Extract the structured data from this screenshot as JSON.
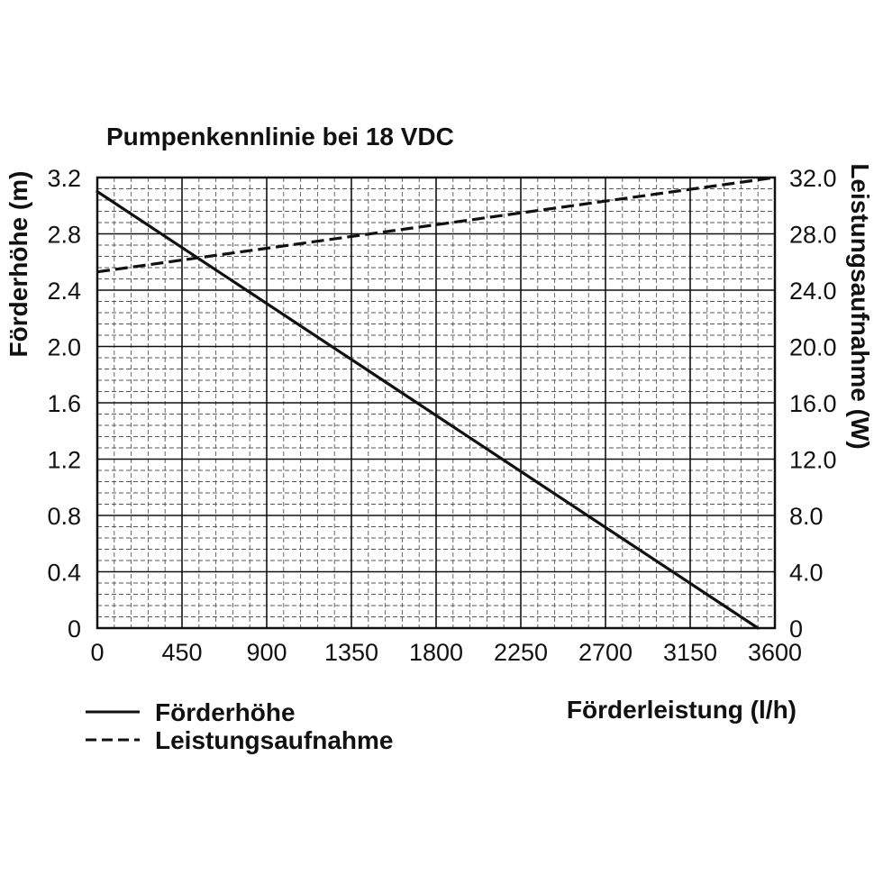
{
  "chart_data": {
    "type": "line",
    "title": "Pumpenkennlinie bei 18 VDC",
    "xlabel": "Förderleistung (l/h)",
    "ylabel_left": "Förderhöhe (m)",
    "ylabel_right": "Leistungsaufnahme (W)",
    "xlim": [
      0,
      3600
    ],
    "ylim_left": [
      0,
      3.2
    ],
    "ylim_right": [
      0,
      32.0
    ],
    "x_ticks": [
      "0",
      "450",
      "900",
      "1350",
      "1800",
      "2250",
      "2700",
      "3150",
      "3600"
    ],
    "y_left_ticks": [
      "0",
      "0.4",
      "0.8",
      "1.2",
      "1.6",
      "2.0",
      "2.4",
      "2.8",
      "3.2"
    ],
    "y_right_ticks": [
      "0",
      "4.0",
      "8.0",
      "12.0",
      "16.0",
      "20.0",
      "24.0",
      "28.0",
      "32.0"
    ],
    "grid": true,
    "legend_position": "bottom-left",
    "series": [
      {
        "name": "Förderhöhe",
        "axis": "left",
        "style": "solid",
        "color": "#111111",
        "x": [
          0,
          3510
        ],
        "y": [
          3.1,
          0
        ]
      },
      {
        "name": "Leistungsaufnahme",
        "axis": "right",
        "style": "dashed",
        "color": "#111111",
        "x": [
          0,
          3600
        ],
        "y": [
          25.3,
          32.0
        ]
      }
    ]
  }
}
